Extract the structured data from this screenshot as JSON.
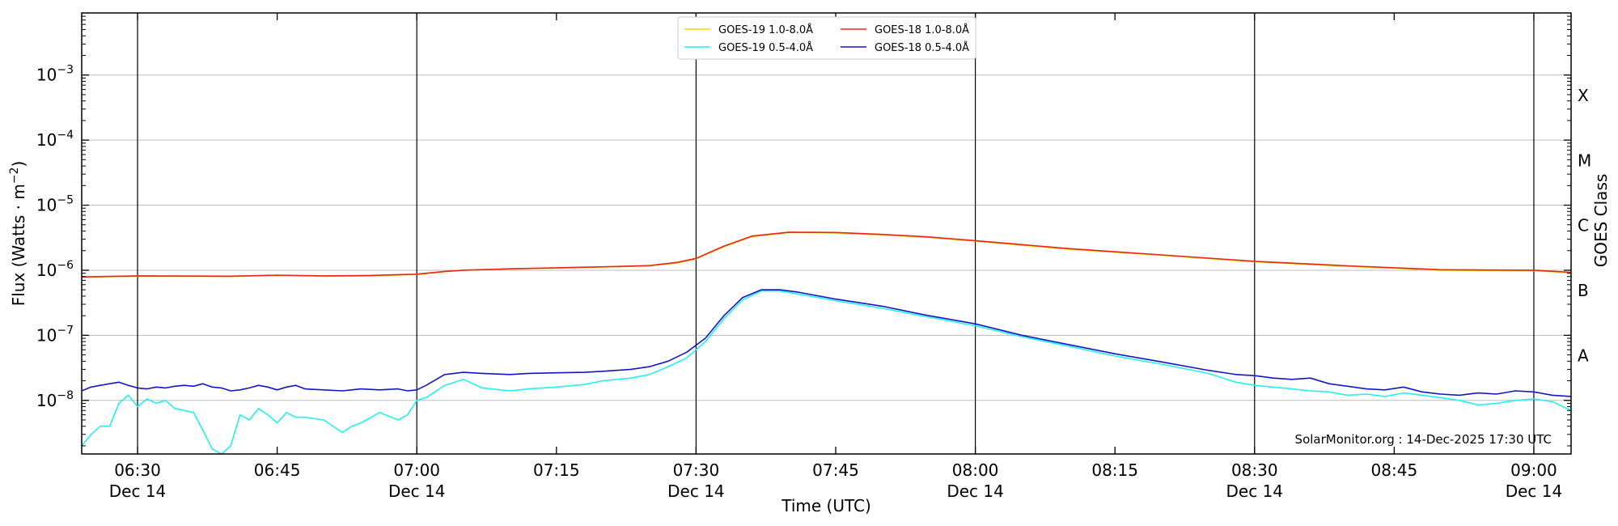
{
  "chart_data": {
    "type": "line",
    "xlabel": "Time (UTC)",
    "ylabel_main": "Flux (Watts · m",
    "ylabel_sup": "−2",
    "ylabel_close": ")",
    "right_label": "GOES Class",
    "credit": "SolarMonitor.org : 14-Dec-2025 17:30 UTC",
    "grid": true,
    "legend_placement": "top-center",
    "y_scale": "log",
    "ylim": [
      1.5e-09,
      0.009
    ],
    "xlim": [
      "06:24",
      "09:04"
    ],
    "x_ticks": [
      {
        "time": "06:30",
        "label": "06:30",
        "date": "Dec 14"
      },
      {
        "time": "06:45",
        "label": "06:45",
        "date": ""
      },
      {
        "time": "07:00",
        "label": "07:00",
        "date": "Dec 14"
      },
      {
        "time": "07:15",
        "label": "07:15",
        "date": ""
      },
      {
        "time": "07:30",
        "label": "07:30",
        "date": "Dec 14"
      },
      {
        "time": "07:45",
        "label": "07:45",
        "date": ""
      },
      {
        "time": "08:00",
        "label": "08:00",
        "date": "Dec 14"
      },
      {
        "time": "08:15",
        "label": "08:15",
        "date": ""
      },
      {
        "time": "08:30",
        "label": "08:30",
        "date": "Dec 14"
      },
      {
        "time": "08:45",
        "label": "08:45",
        "date": ""
      },
      {
        "time": "09:00",
        "label": "09:00",
        "date": "Dec 14"
      }
    ],
    "day_boundaries": [
      "06:30",
      "07:00",
      "07:30",
      "08:00",
      "08:30",
      "09:00"
    ],
    "y_ticks": [
      {
        "value": 1e-08,
        "base": "10",
        "exp": "−8"
      },
      {
        "value": 1e-07,
        "base": "10",
        "exp": "−7"
      },
      {
        "value": 1e-06,
        "base": "10",
        "exp": "−6"
      },
      {
        "value": 1e-05,
        "base": "10",
        "exp": "−5"
      },
      {
        "value": 0.0001,
        "base": "10",
        "exp": "−4"
      },
      {
        "value": 0.001,
        "base": "10",
        "exp": "−3"
      }
    ],
    "goes_classes": [
      {
        "label": "A",
        "flux": 5e-08
      },
      {
        "label": "B",
        "flux": 5e-07
      },
      {
        "label": "C",
        "flux": 5e-06
      },
      {
        "label": "M",
        "flux": 5e-05
      },
      {
        "label": "X",
        "flux": 0.0005
      }
    ],
    "series": [
      {
        "name": "GOES-19 1.0-8.0Å",
        "color": "#ffd000",
        "x": [
          "06:24",
          "06:30",
          "06:40",
          "06:45",
          "06:50",
          "06:55",
          "07:00",
          "07:03",
          "07:05",
          "07:10",
          "07:15",
          "07:20",
          "07:25",
          "07:28",
          "07:30",
          "07:33",
          "07:36",
          "07:40",
          "07:45",
          "07:50",
          "07:55",
          "08:00",
          "08:10",
          "08:20",
          "08:30",
          "08:40",
          "08:50",
          "09:00",
          "09:04"
        ],
        "y": [
          7.8e-07,
          8.1e-07,
          8e-07,
          8.3e-07,
          8.1e-07,
          8.2e-07,
          8.6e-07,
          9.5e-07,
          1e-06,
          1.05e-06,
          1.08e-06,
          1.12e-06,
          1.17e-06,
          1.3e-06,
          1.5e-06,
          2.3e-06,
          3.3e-06,
          3.8e-06,
          3.75e-06,
          3.5e-06,
          3.2e-06,
          2.8e-06,
          2.1e-06,
          1.7e-06,
          1.35e-06,
          1.15e-06,
          1e-06,
          9.8e-07,
          9.2e-07
        ]
      },
      {
        "name": "GOES-18 1.0-8.0Å",
        "color": "#e8261a",
        "x": [
          "06:24",
          "06:30",
          "06:40",
          "06:45",
          "06:50",
          "06:55",
          "07:00",
          "07:03",
          "07:05",
          "07:10",
          "07:15",
          "07:20",
          "07:25",
          "07:28",
          "07:30",
          "07:33",
          "07:36",
          "07:40",
          "07:45",
          "07:50",
          "07:55",
          "08:00",
          "08:10",
          "08:20",
          "08:30",
          "08:40",
          "08:50",
          "09:00",
          "09:04"
        ],
        "y": [
          7.9e-07,
          8.2e-07,
          8.1e-07,
          8.4e-07,
          8.2e-07,
          8.3e-07,
          8.7e-07,
          9.6e-07,
          1e-06,
          1.05e-06,
          1.09e-06,
          1.13e-06,
          1.18e-06,
          1.32e-06,
          1.52e-06,
          2.35e-06,
          3.35e-06,
          3.85e-06,
          3.8e-06,
          3.55e-06,
          3.25e-06,
          2.85e-06,
          2.15e-06,
          1.72e-06,
          1.37e-06,
          1.17e-06,
          1.02e-06,
          1e-06,
          9.3e-07
        ]
      },
      {
        "name": "GOES-19 0.5-4.0Å",
        "color": "#22f0f0",
        "x": [
          "06:24",
          "06:25",
          "06:26",
          "06:27",
          "06:28",
          "06:29",
          "06:30",
          "06:31",
          "06:32",
          "06:33",
          "06:34",
          "06:35",
          "06:36",
          "06:37",
          "06:38",
          "06:39",
          "06:40",
          "06:41",
          "06:42",
          "06:43",
          "06:44",
          "06:45",
          "06:46",
          "06:47",
          "06:48",
          "06:50",
          "06:52",
          "06:53",
          "06:54",
          "06:56",
          "06:58",
          "06:59",
          "07:00",
          "07:01",
          "07:03",
          "07:05",
          "07:07",
          "07:10",
          "07:12",
          "07:15",
          "07:18",
          "07:20",
          "07:23",
          "07:25",
          "07:27",
          "07:29",
          "07:31",
          "07:33",
          "07:35",
          "07:37",
          "07:39",
          "07:41",
          "07:45",
          "07:50",
          "07:55",
          "08:00",
          "08:05",
          "08:10",
          "08:15",
          "08:20",
          "08:25",
          "08:28",
          "08:30",
          "08:32",
          "08:34",
          "08:36",
          "08:38",
          "08:40",
          "08:42",
          "08:44",
          "08:46",
          "08:48",
          "08:50",
          "08:52",
          "08:54",
          "08:56",
          "08:58",
          "09:00",
          "09:02",
          "09:04"
        ],
        "y": [
          2e-09,
          3e-09,
          4e-09,
          4e-09,
          9e-09,
          1.2e-08,
          8e-09,
          1.05e-08,
          9e-09,
          1e-08,
          7.5e-09,
          7e-09,
          6.5e-09,
          3.5e-09,
          1.8e-09,
          1.5e-09,
          2e-09,
          6e-09,
          5e-09,
          7.5e-09,
          6e-09,
          4.5e-09,
          6.5e-09,
          5.5e-09,
          5.5e-09,
          5e-09,
          3.2e-09,
          4e-09,
          4.5e-09,
          6.5e-09,
          5e-09,
          6e-09,
          1e-08,
          1.1e-08,
          1.7e-08,
          2.1e-08,
          1.55e-08,
          1.4e-08,
          1.5e-08,
          1.6e-08,
          1.75e-08,
          2e-08,
          2.2e-08,
          2.5e-08,
          3.3e-08,
          4.5e-08,
          8e-08,
          1.8e-07,
          3.5e-07,
          4.8e-07,
          4.8e-07,
          4.3e-07,
          3.4e-07,
          2.6e-07,
          1.9e-07,
          1.4e-07,
          9.5e-08,
          6.8e-08,
          4.8e-08,
          3.6e-08,
          2.6e-08,
          1.9e-08,
          1.7e-08,
          1.6e-08,
          1.5e-08,
          1.4e-08,
          1.35e-08,
          1.2e-08,
          1.25e-08,
          1.15e-08,
          1.3e-08,
          1.2e-08,
          1.1e-08,
          1e-08,
          8.5e-09,
          9e-09,
          1e-08,
          1.05e-08,
          9.5e-09,
          7e-09
        ]
      },
      {
        "name": "GOES-18 0.5-4.0Å",
        "color": "#1515c8",
        "x": [
          "06:24",
          "06:25",
          "06:26",
          "06:27",
          "06:28",
          "06:29",
          "06:30",
          "06:31",
          "06:32",
          "06:33",
          "06:34",
          "06:35",
          "06:36",
          "06:37",
          "06:38",
          "06:39",
          "06:40",
          "06:41",
          "06:42",
          "06:43",
          "06:44",
          "06:45",
          "06:46",
          "06:47",
          "06:48",
          "06:50",
          "06:52",
          "06:53",
          "06:54",
          "06:56",
          "06:58",
          "06:59",
          "07:00",
          "07:01",
          "07:03",
          "07:05",
          "07:07",
          "07:10",
          "07:12",
          "07:15",
          "07:18",
          "07:20",
          "07:23",
          "07:25",
          "07:27",
          "07:29",
          "07:31",
          "07:33",
          "07:35",
          "07:37",
          "07:39",
          "07:41",
          "07:45",
          "07:50",
          "07:55",
          "08:00",
          "08:05",
          "08:10",
          "08:15",
          "08:20",
          "08:25",
          "08:28",
          "08:30",
          "08:32",
          "08:34",
          "08:36",
          "08:38",
          "08:40",
          "08:42",
          "08:44",
          "08:46",
          "08:48",
          "08:50",
          "08:52",
          "08:54",
          "08:56",
          "08:58",
          "09:00",
          "09:02",
          "09:04"
        ],
        "y": [
          1.4e-08,
          1.6e-08,
          1.7e-08,
          1.8e-08,
          1.9e-08,
          1.7e-08,
          1.55e-08,
          1.5e-08,
          1.6e-08,
          1.55e-08,
          1.65e-08,
          1.7e-08,
          1.65e-08,
          1.8e-08,
          1.6e-08,
          1.55e-08,
          1.4e-08,
          1.45e-08,
          1.55e-08,
          1.7e-08,
          1.6e-08,
          1.45e-08,
          1.6e-08,
          1.7e-08,
          1.5e-08,
          1.45e-08,
          1.4e-08,
          1.45e-08,
          1.5e-08,
          1.45e-08,
          1.5e-08,
          1.4e-08,
          1.45e-08,
          1.7e-08,
          2.5e-08,
          2.7e-08,
          2.6e-08,
          2.5e-08,
          2.6e-08,
          2.65e-08,
          2.7e-08,
          2.8e-08,
          3e-08,
          3.3e-08,
          4e-08,
          5.5e-08,
          9e-08,
          2e-07,
          3.8e-07,
          5e-07,
          5e-07,
          4.6e-07,
          3.6e-07,
          2.8e-07,
          2e-07,
          1.5e-07,
          1e-07,
          7.2e-08,
          5.2e-08,
          3.9e-08,
          2.9e-08,
          2.5e-08,
          2.4e-08,
          2.2e-08,
          2.1e-08,
          2.2e-08,
          1.8e-08,
          1.65e-08,
          1.5e-08,
          1.45e-08,
          1.6e-08,
          1.35e-08,
          1.25e-08,
          1.2e-08,
          1.3e-08,
          1.25e-08,
          1.4e-08,
          1.35e-08,
          1.2e-08,
          1.15e-08
        ]
      }
    ]
  }
}
